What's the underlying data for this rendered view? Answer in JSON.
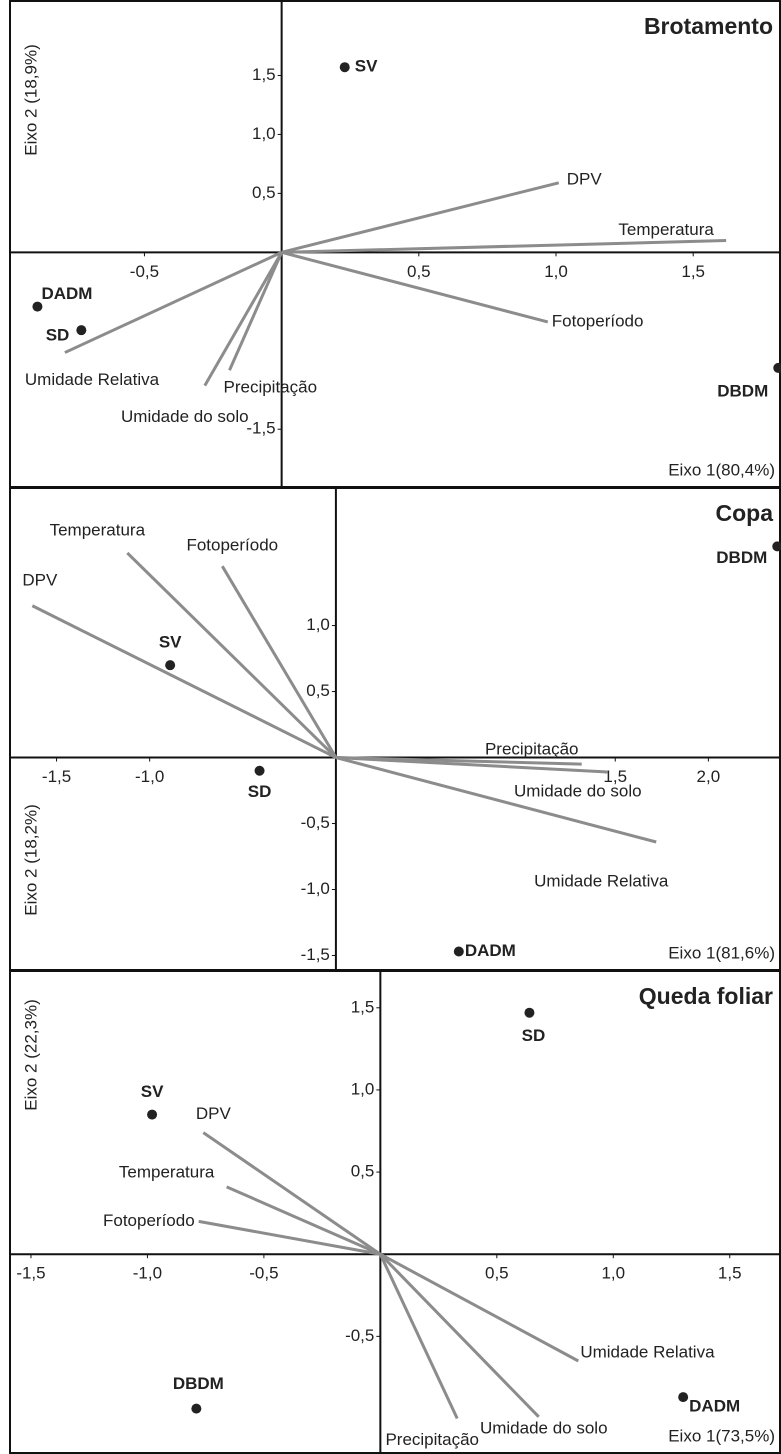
{
  "chart_data": [
    {
      "type": "biplot",
      "title": "Brotamento",
      "x_label": "Eixo 1(80,4%)",
      "y_label": "Eixo 2 (18,9%)",
      "xlim": [
        -0.99,
        1.82
      ],
      "ylim": [
        -1.99,
        2.14
      ],
      "xticks": [
        {
          "value": -0.5,
          "label": "-0,5"
        },
        {
          "value": 0.5,
          "label": "0,5"
        },
        {
          "value": 1.0,
          "label": "1,0"
        },
        {
          "value": 1.5,
          "label": "1,5"
        }
      ],
      "yticks": [
        {
          "value": 1.5,
          "label": "1,5"
        },
        {
          "value": 1.0,
          "label": "1,0"
        },
        {
          "value": 0.5,
          "label": "0,5"
        },
        {
          "value": -1.5,
          "label": "-1,5"
        }
      ],
      "point_color": "#222222",
      "vector_color": "#8c8c8c",
      "points": [
        {
          "name": "SV",
          "x": 0.23,
          "y": 1.57
        },
        {
          "name": "DADM",
          "x": -0.89,
          "y": -0.46
        },
        {
          "name": "SD",
          "x": -0.73,
          "y": -0.66
        },
        {
          "name": "DBDM",
          "x": 1.81,
          "y": -0.98
        }
      ],
      "vectors": [
        {
          "name": "DPV",
          "x": 1.01,
          "y": 0.59
        },
        {
          "name": "Temperatura",
          "x": 1.62,
          "y": 0.1
        },
        {
          "name": "Fotoperíodo",
          "x": 0.97,
          "y": -0.59
        },
        {
          "name": "Umidade Relativa",
          "x": -0.79,
          "y": -0.85
        },
        {
          "name": "Precipitação",
          "x": -0.19,
          "y": -1.0
        },
        {
          "name": "Umidade do solo",
          "x": -0.28,
          "y": -1.13
        }
      ]
    },
    {
      "type": "biplot",
      "title": "Copa",
      "x_label": "Eixo 1(81,6%)",
      "y_label": "Eixo 2 (18,2%)",
      "xlim": [
        -1.75,
        2.39
      ],
      "ylim": [
        -1.61,
        2.05
      ],
      "xticks": [
        {
          "value": -1.5,
          "label": "-1,5"
        },
        {
          "value": -1.0,
          "label": "-1,0"
        },
        {
          "value": 1.5,
          "label": "1,5"
        },
        {
          "value": 2.0,
          "label": "2,0"
        }
      ],
      "yticks": [
        {
          "value": 1.0,
          "label": "1,0"
        },
        {
          "value": 0.5,
          "label": "0,5"
        },
        {
          "value": -0.5,
          "label": "-0,5"
        },
        {
          "value": -1.0,
          "label": "-1,0"
        },
        {
          "value": -1.5,
          "label": "-1,5"
        }
      ],
      "point_color": "#222222",
      "vector_color": "#8c8c8c",
      "points": [
        {
          "name": "DBDM",
          "x": 2.37,
          "y": 1.6
        },
        {
          "name": "SV",
          "x": -0.89,
          "y": 0.7
        },
        {
          "name": "SD",
          "x": -0.41,
          "y": -0.1
        },
        {
          "name": "DADM",
          "x": 0.66,
          "y": -1.47
        }
      ],
      "vectors": [
        {
          "name": "Temperatura",
          "x": -1.12,
          "y": 1.55
        },
        {
          "name": "Fotoperíodo",
          "x": -0.61,
          "y": 1.45
        },
        {
          "name": "DPV",
          "x": -1.63,
          "y": 1.15
        },
        {
          "name": "Precipitação",
          "x": 1.32,
          "y": -0.05
        },
        {
          "name": "Umidade do solo",
          "x": 1.46,
          "y": -0.11
        },
        {
          "name": "Umidade Relativa",
          "x": 1.72,
          "y": -0.64
        }
      ]
    },
    {
      "type": "biplot",
      "title": "Queda foliar",
      "x_label": "Eixo 1(73,5%)",
      "y_label": "Eixo 2 (22,3%)",
      "xlim": [
        -1.59,
        1.72
      ],
      "ylim": [
        -1.21,
        1.73
      ],
      "xticks": [
        {
          "value": -1.5,
          "label": "-1,5"
        },
        {
          "value": -1.0,
          "label": "-1,0"
        },
        {
          "value": -0.5,
          "label": "-0,5"
        },
        {
          "value": 0.5,
          "label": "0,5"
        },
        {
          "value": 1.0,
          "label": "1,0"
        },
        {
          "value": 1.5,
          "label": "1,5"
        }
      ],
      "yticks": [
        {
          "value": 1.5,
          "label": "1,5"
        },
        {
          "value": 1.0,
          "label": "1,0"
        },
        {
          "value": 0.5,
          "label": "0,5"
        },
        {
          "value": -0.5,
          "label": "-0,5"
        }
      ],
      "point_color": "#222222",
      "vector_color": "#8c8c8c",
      "points": [
        {
          "name": "SD",
          "x": 0.64,
          "y": 1.47
        },
        {
          "name": "SV",
          "x": -0.98,
          "y": 0.85
        },
        {
          "name": "DBDM",
          "x": -0.79,
          "y": -0.94
        },
        {
          "name": "DADM",
          "x": 1.3,
          "y": -0.87
        }
      ],
      "vectors": [
        {
          "name": "DPV",
          "x": -0.76,
          "y": 0.74
        },
        {
          "name": "Temperatura",
          "x": -0.66,
          "y": 0.41
        },
        {
          "name": "Fotoperíodo",
          "x": -0.78,
          "y": 0.2
        },
        {
          "name": "Precipitação",
          "x": 0.33,
          "y": -1.0
        },
        {
          "name": "Umidade do solo",
          "x": 0.68,
          "y": -0.99
        },
        {
          "name": "Umidade Relativa",
          "x": 0.85,
          "y": -0.65
        }
      ]
    }
  ]
}
